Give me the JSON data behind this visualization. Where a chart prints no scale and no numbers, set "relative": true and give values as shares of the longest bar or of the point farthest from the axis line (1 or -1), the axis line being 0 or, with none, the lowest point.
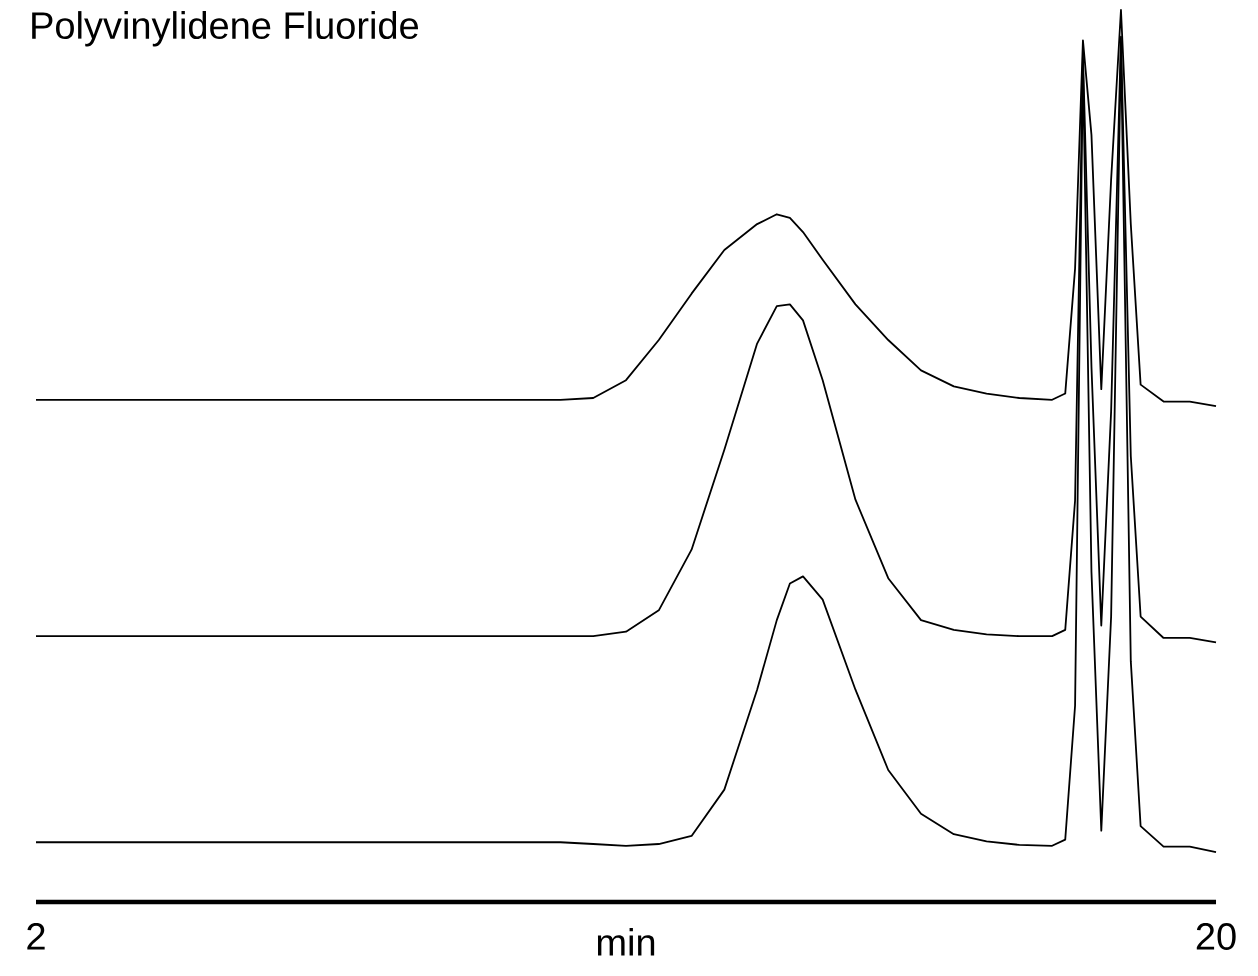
{
  "chart_data": {
    "type": "line",
    "title": "Polyvinylidene Fluoride",
    "xlabel": "min",
    "relative": true,
    "grid": false,
    "xlim": [
      2,
      20
    ],
    "xticks": [
      2,
      20
    ],
    "x": [
      2,
      4,
      6,
      8,
      10,
      10.5,
      11,
      11.5,
      12,
      12.5,
      13,
      13.3,
      13.5,
      13.7,
      14,
      14.5,
      15,
      15.5,
      16,
      16.5,
      17,
      17.5,
      17.7,
      17.85,
      17.97,
      18.1,
      18.25,
      18.4,
      18.55,
      18.7,
      18.85,
      19.2,
      19.6,
      20
    ],
    "series": [
      {
        "color": "#000000",
        "values": [
          0.563,
          0.563,
          0.563,
          0.563,
          0.563,
          0.565,
          0.585,
          0.63,
          0.682,
          0.731,
          0.76,
          0.771,
          0.767,
          0.751,
          0.72,
          0.67,
          0.63,
          0.596,
          0.578,
          0.57,
          0.565,
          0.563,
          0.57,
          0.71,
          0.966,
          0.86,
          0.575,
          0.81,
          1.0,
          0.76,
          0.58,
          0.561,
          0.561,
          0.556
        ]
      },
      {
        "color": "#000000",
        "values": [
          0.298,
          0.298,
          0.298,
          0.298,
          0.298,
          0.298,
          0.303,
          0.327,
          0.395,
          0.507,
          0.626,
          0.668,
          0.67,
          0.652,
          0.585,
          0.451,
          0.363,
          0.316,
          0.305,
          0.3,
          0.298,
          0.298,
          0.305,
          0.45,
          0.95,
          0.6,
          0.31,
          0.55,
          0.97,
          0.5,
          0.32,
          0.296,
          0.296,
          0.291
        ]
      },
      {
        "color": "#000000",
        "values": [
          0.067,
          0.067,
          0.067,
          0.067,
          0.067,
          0.065,
          0.063,
          0.065,
          0.074,
          0.126,
          0.238,
          0.316,
          0.357,
          0.365,
          0.339,
          0.238,
          0.148,
          0.099,
          0.076,
          0.068,
          0.064,
          0.063,
          0.07,
          0.22,
          0.94,
          0.37,
          0.08,
          0.32,
          0.96,
          0.27,
          0.085,
          0.062,
          0.062,
          0.056
        ]
      }
    ]
  }
}
